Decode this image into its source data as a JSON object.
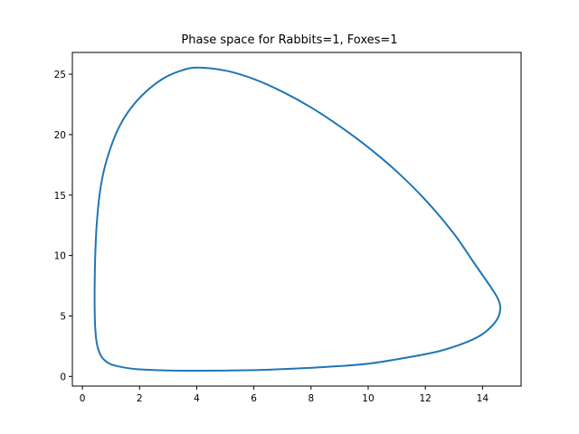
{
  "chart_data": {
    "type": "line",
    "title": "Phase space for Rabbits=1, Foxes=1",
    "xlabel": "",
    "ylabel": "",
    "xlim": [
      -0.35,
      15.35
    ],
    "ylim": [
      -0.8,
      26.8
    ],
    "x_ticks": [
      "0",
      "2",
      "4",
      "6",
      "8",
      "10",
      "12",
      "14"
    ],
    "y_ticks": [
      "0",
      "5",
      "10",
      "15",
      "20",
      "25"
    ],
    "grid": false,
    "series": [
      {
        "color": "#1f77b4",
        "points": [
          [
            4.0,
            25.55
          ],
          [
            5.0,
            25.3
          ],
          [
            6.0,
            24.6
          ],
          [
            7.0,
            23.55
          ],
          [
            8.0,
            22.25
          ],
          [
            9.0,
            20.7
          ],
          [
            10.0,
            18.95
          ],
          [
            11.0,
            16.95
          ],
          [
            12.0,
            14.6
          ],
          [
            13.0,
            11.8
          ],
          [
            13.7,
            9.4
          ],
          [
            14.2,
            7.7
          ],
          [
            14.5,
            6.6
          ],
          [
            14.62,
            5.8
          ],
          [
            14.55,
            4.9
          ],
          [
            14.3,
            4.1
          ],
          [
            13.9,
            3.35
          ],
          [
            13.3,
            2.7
          ],
          [
            12.5,
            2.1
          ],
          [
            11.5,
            1.62
          ],
          [
            10.0,
            1.05
          ],
          [
            8.5,
            0.78
          ],
          [
            7.0,
            0.6
          ],
          [
            6.0,
            0.52
          ],
          [
            5.0,
            0.48
          ],
          [
            4.0,
            0.47
          ],
          [
            3.0,
            0.49
          ],
          [
            2.0,
            0.58
          ],
          [
            1.5,
            0.72
          ],
          [
            1.0,
            1.0
          ],
          [
            0.75,
            1.4
          ],
          [
            0.6,
            1.95
          ],
          [
            0.5,
            2.8
          ],
          [
            0.45,
            4.0
          ],
          [
            0.43,
            5.5
          ],
          [
            0.43,
            7.5
          ],
          [
            0.45,
            10.0
          ],
          [
            0.5,
            12.5
          ],
          [
            0.6,
            15.0
          ],
          [
            0.75,
            17.0
          ],
          [
            1.0,
            19.0
          ],
          [
            1.3,
            20.7
          ],
          [
            1.7,
            22.2
          ],
          [
            2.2,
            23.5
          ],
          [
            2.8,
            24.6
          ],
          [
            3.4,
            25.25
          ],
          [
            4.0,
            25.55
          ]
        ]
      }
    ]
  }
}
